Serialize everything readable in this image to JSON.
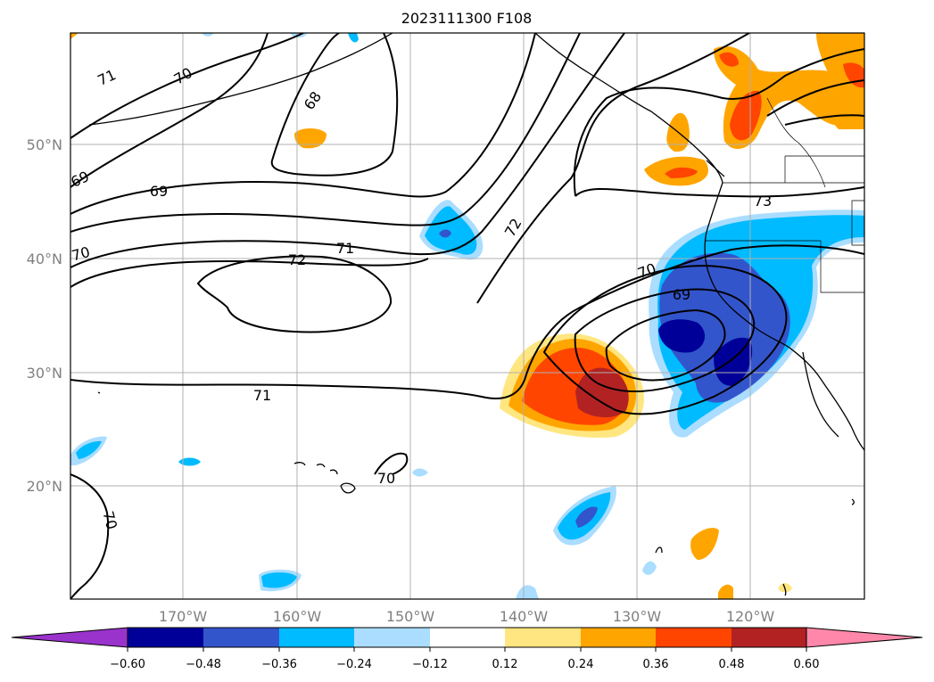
{
  "title": "2023111300 F108",
  "lat_labels": [
    "50°N",
    "40°N",
    "30°N",
    "20°N"
  ],
  "lon_labels": [
    "170°W",
    "160°W",
    "150°W",
    "140°W",
    "130°W",
    "120°W"
  ],
  "colorbar": {
    "ticks": [
      "−0.60",
      "−0.48",
      "−0.36",
      "−0.24",
      "−0.12",
      "0.12",
      "0.24",
      "0.36",
      "0.48",
      "0.60"
    ],
    "colors": [
      "#9933cc",
      "#000099",
      "#3355cc",
      "#00bbff",
      "#aaddff",
      "#ffffff",
      "#ffe680",
      "#ffa500",
      "#ff4500",
      "#b22222",
      "#ff88aa"
    ]
  },
  "contour_labels": [
    "71",
    "70",
    "68",
    "69",
    "69",
    "70",
    "72",
    "71",
    "72",
    "73",
    "70",
    "69",
    "71",
    "70",
    "70"
  ]
}
